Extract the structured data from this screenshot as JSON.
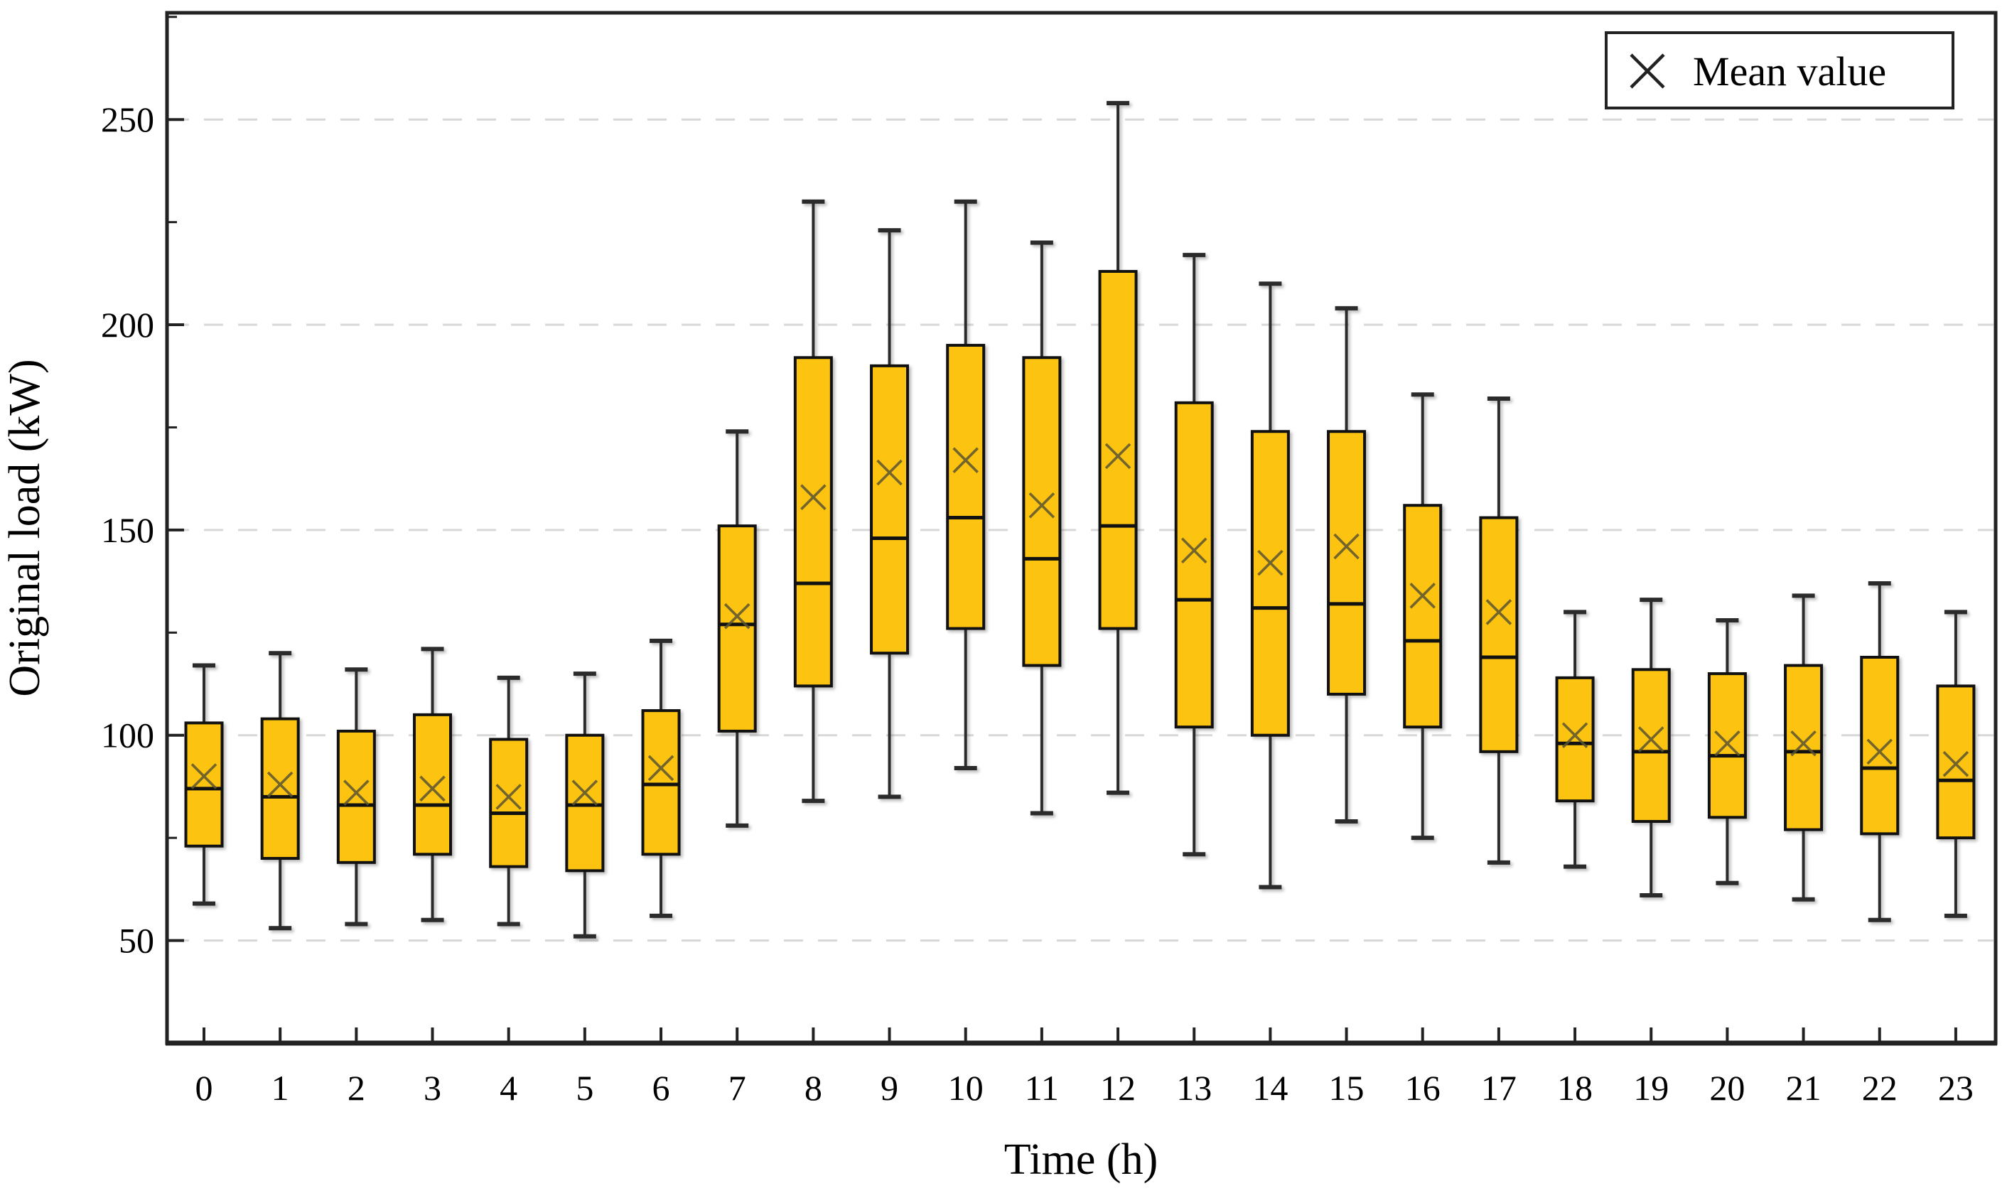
{
  "figure": {
    "background": "#FFFFFF"
  },
  "chart_data": {
    "type": "boxplot",
    "title": "",
    "xlabel": "Time (h)",
    "ylabel": "Original load (kW)",
    "categories": [
      "0",
      "1",
      "2",
      "3",
      "4",
      "5",
      "6",
      "7",
      "8",
      "9",
      "10",
      "11",
      "12",
      "13",
      "14",
      "15",
      "16",
      "17",
      "18",
      "19",
      "20",
      "21",
      "22",
      "23"
    ],
    "yticks": [
      50,
      100,
      150,
      200,
      250
    ],
    "minor_yticks": [
      75,
      125,
      175,
      225,
      275
    ],
    "ylim": [
      25,
      276
    ],
    "grid": "horizontal-dashed-at-major-ticks",
    "legend": {
      "position": "top-right",
      "entries": [
        {
          "marker": "x",
          "label": "Mean value"
        }
      ]
    },
    "colors": {
      "box_fill": "#FCC411",
      "box_edge": "#111111",
      "median_line": "#111111",
      "whisker": "#2B2B2B",
      "mean_marker": "#5A5430",
      "grid": "#D8D8D8",
      "axis": "#222222",
      "background": "#FFFFFF"
    },
    "series": [
      {
        "hour": "0",
        "min": 59,
        "q1": 73,
        "median": 87,
        "mean": 90,
        "q3": 103,
        "max": 117
      },
      {
        "hour": "1",
        "min": 53,
        "q1": 70,
        "median": 85,
        "mean": 88,
        "q3": 104,
        "max": 120
      },
      {
        "hour": "2",
        "min": 54,
        "q1": 69,
        "median": 83,
        "mean": 86,
        "q3": 101,
        "max": 116
      },
      {
        "hour": "3",
        "min": 55,
        "q1": 71,
        "median": 83,
        "mean": 87,
        "q3": 105,
        "max": 121
      },
      {
        "hour": "4",
        "min": 54,
        "q1": 68,
        "median": 81,
        "mean": 85,
        "q3": 99,
        "max": 114
      },
      {
        "hour": "5",
        "min": 51,
        "q1": 67,
        "median": 83,
        "mean": 86,
        "q3": 100,
        "max": 115
      },
      {
        "hour": "6",
        "min": 56,
        "q1": 71,
        "median": 88,
        "mean": 92,
        "q3": 106,
        "max": 123
      },
      {
        "hour": "7",
        "min": 78,
        "q1": 101,
        "median": 127,
        "mean": 129,
        "q3": 151,
        "max": 174
      },
      {
        "hour": "8",
        "min": 84,
        "q1": 112,
        "median": 137,
        "mean": 158,
        "q3": 192,
        "max": 230
      },
      {
        "hour": "9",
        "min": 85,
        "q1": 120,
        "median": 148,
        "mean": 164,
        "q3": 190,
        "max": 223
      },
      {
        "hour": "10",
        "min": 92,
        "q1": 126,
        "median": 153,
        "mean": 167,
        "q3": 195,
        "max": 230
      },
      {
        "hour": "11",
        "min": 81,
        "q1": 117,
        "median": 143,
        "mean": 156,
        "q3": 192,
        "max": 220
      },
      {
        "hour": "12",
        "min": 86,
        "q1": 126,
        "median": 151,
        "mean": 168,
        "q3": 213,
        "max": 254
      },
      {
        "hour": "13",
        "min": 71,
        "q1": 102,
        "median": 133,
        "mean": 145,
        "q3": 181,
        "max": 217
      },
      {
        "hour": "14",
        "min": 63,
        "q1": 100,
        "median": 131,
        "mean": 142,
        "q3": 174,
        "max": 210
      },
      {
        "hour": "15",
        "min": 79,
        "q1": 110,
        "median": 132,
        "mean": 146,
        "q3": 174,
        "max": 204
      },
      {
        "hour": "16",
        "min": 75,
        "q1": 102,
        "median": 123,
        "mean": 134,
        "q3": 156,
        "max": 183
      },
      {
        "hour": "17",
        "min": 69,
        "q1": 96,
        "median": 119,
        "mean": 130,
        "q3": 153,
        "max": 182
      },
      {
        "hour": "18",
        "min": 68,
        "q1": 84,
        "median": 98,
        "mean": 100,
        "q3": 114,
        "max": 130
      },
      {
        "hour": "19",
        "min": 61,
        "q1": 79,
        "median": 96,
        "mean": 99,
        "q3": 116,
        "max": 133
      },
      {
        "hour": "20",
        "min": 64,
        "q1": 80,
        "median": 95,
        "mean": 98,
        "q3": 115,
        "max": 128
      },
      {
        "hour": "21",
        "min": 60,
        "q1": 77,
        "median": 96,
        "mean": 98,
        "q3": 117,
        "max": 134
      },
      {
        "hour": "22",
        "min": 55,
        "q1": 76,
        "median": 92,
        "mean": 96,
        "q3": 119,
        "max": 137
      },
      {
        "hour": "23",
        "min": 56,
        "q1": 75,
        "median": 89,
        "mean": 93,
        "q3": 112,
        "max": 130
      }
    ]
  }
}
